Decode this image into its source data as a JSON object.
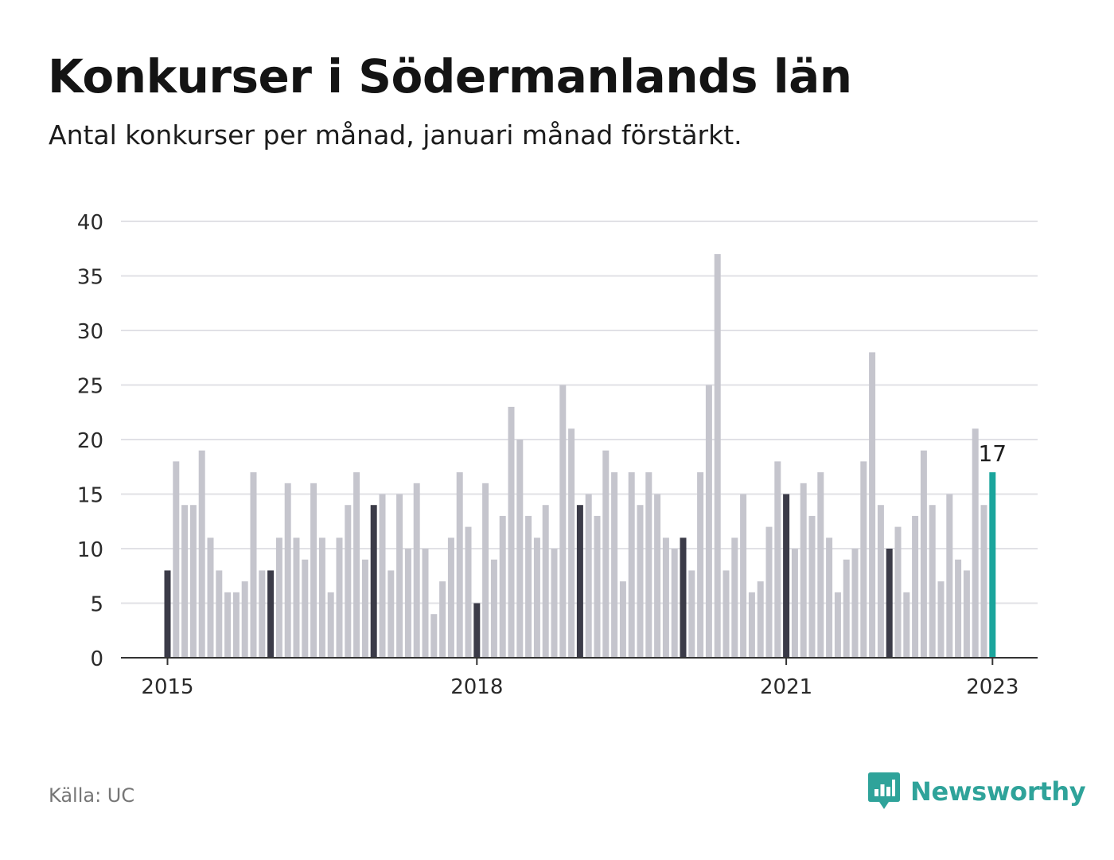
{
  "title": "Konkurser i Södermanlands län",
  "subtitle": "Antal konkurser per månad, januari månad förstärkt.",
  "source": "Källa: UC",
  "brand": "Newsworthy",
  "brand_logo_icon": "bar-chart-speech-bubble-icon",
  "colors": {
    "january": "#3b3b48",
    "other": "#c5c5cd",
    "latest": "#1aa59c",
    "grid": "#e1e1e6",
    "axis": "#333333",
    "brand": "#2fa39a"
  },
  "chart_data": {
    "type": "bar",
    "title": "Konkurser i Södermanlands län",
    "subtitle": "Antal konkurser per månad, januari månad förstärkt.",
    "xlabel": "",
    "ylabel": "",
    "ylim": [
      0,
      40
    ],
    "yticks": [
      0,
      5,
      10,
      15,
      20,
      25,
      30,
      35,
      40
    ],
    "xticks": [
      {
        "label": "2015",
        "index": 0
      },
      {
        "label": "2018",
        "index": 36
      },
      {
        "label": "2021",
        "index": 72
      },
      {
        "label": "2023",
        "index": 96
      }
    ],
    "start": "2015-01",
    "end": "2023-01",
    "values": [
      8,
      18,
      14,
      14,
      19,
      11,
      8,
      6,
      6,
      7,
      17,
      8,
      8,
      11,
      16,
      11,
      9,
      16,
      11,
      6,
      11,
      14,
      17,
      9,
      14,
      15,
      8,
      15,
      10,
      16,
      10,
      4,
      7,
      11,
      17,
      12,
      5,
      16,
      9,
      13,
      23,
      20,
      13,
      11,
      14,
      10,
      25,
      21,
      14,
      15,
      13,
      19,
      17,
      7,
      17,
      14,
      17,
      15,
      11,
      10,
      11,
      8,
      17,
      25,
      37,
      8,
      11,
      15,
      6,
      7,
      12,
      18,
      15,
      10,
      16,
      13,
      17,
      11,
      6,
      9,
      10,
      18,
      28,
      14,
      10,
      12,
      6,
      13,
      19,
      14,
      7,
      15,
      9,
      8,
      21,
      14,
      17
    ],
    "highlight": "January bars shown dark; latest month (January 2023) highlighted in teal",
    "latest_label": "17"
  }
}
